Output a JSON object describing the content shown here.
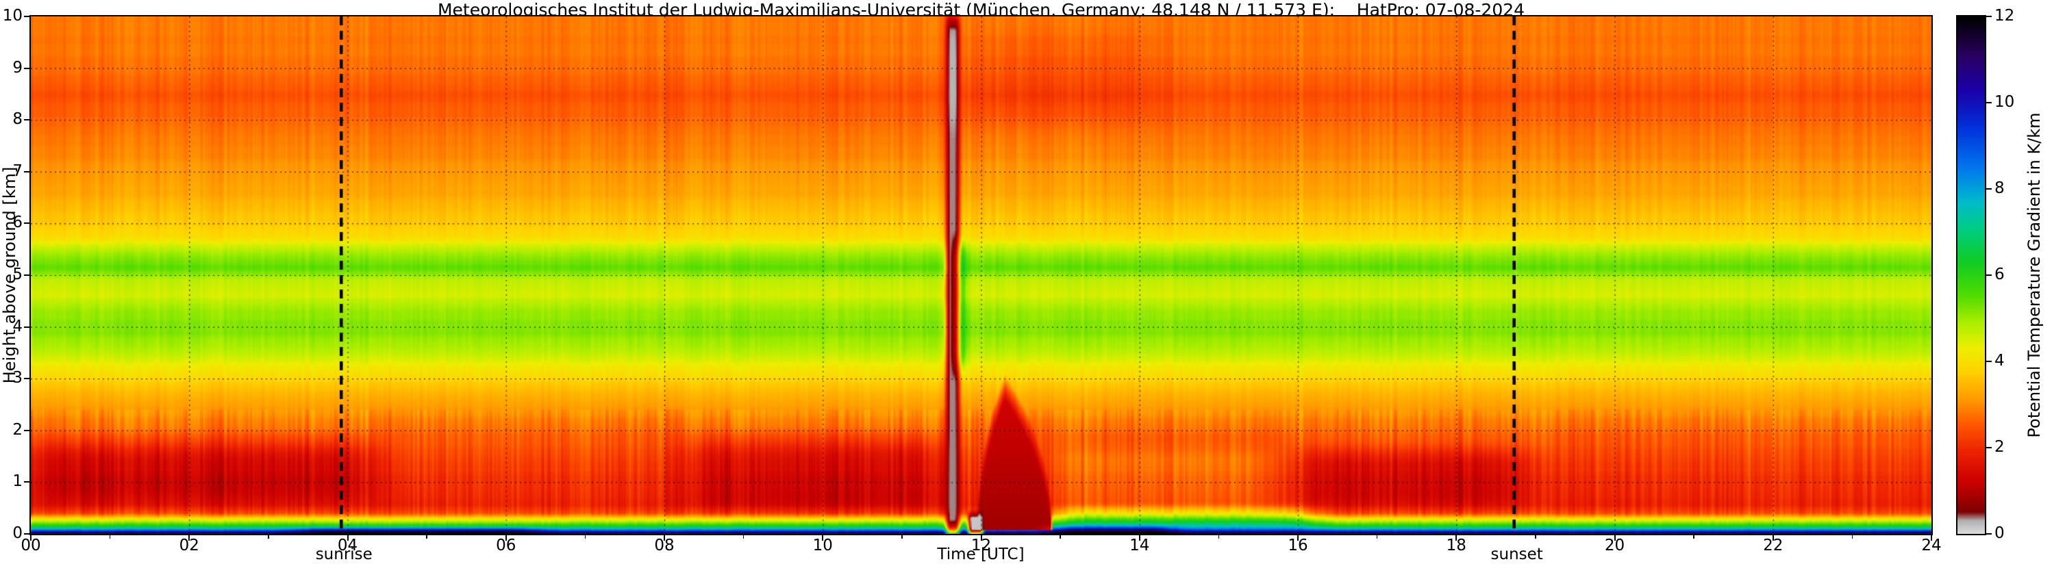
{
  "title": "Meteorologisches Institut der Ludwig-Maximilians-Universität (München, Germany; 48.148 N / 11.573 E):    HatPro: 07-08-2024",
  "axes": {
    "x": {
      "label": "Time [UTC]",
      "range_hours": [
        0,
        24
      ],
      "tick_values": [
        0,
        2,
        4,
        6,
        8,
        10,
        12,
        14,
        16,
        18,
        20,
        22,
        24
      ],
      "tick_labels": [
        "00",
        "02",
        "04",
        "06",
        "08",
        "10",
        "12",
        "14",
        "16",
        "18",
        "20",
        "22",
        "24"
      ],
      "minor_tick_values": [
        1,
        3,
        5,
        7,
        9,
        11,
        13,
        15,
        17,
        19,
        21,
        23
      ]
    },
    "y": {
      "label": "Height above ground [km]",
      "range_km": [
        0,
        10
      ],
      "tick_values": [
        0,
        1,
        2,
        3,
        4,
        5,
        6,
        7,
        8,
        9,
        10
      ],
      "tick_labels": [
        "0",
        "1",
        "2",
        "3",
        "4",
        "5",
        "6",
        "7",
        "8",
        "9",
        "10"
      ]
    }
  },
  "colorbar": {
    "label": "Potential Temperature Gradient in K/km",
    "range": [
      0,
      12
    ],
    "tick_values": [
      0,
      2,
      4,
      6,
      8,
      10,
      12
    ],
    "tick_labels": [
      "0",
      "2",
      "4",
      "6",
      "8",
      "10",
      "12"
    ]
  },
  "events": {
    "sunrise": {
      "label": "sunrise",
      "time_utc": 3.92
    },
    "sunset": {
      "label": "sunset",
      "time_utc": 18.73
    }
  },
  "grid": {
    "style": "dotted",
    "color": "#000000",
    "x_lines_hours": [
      2,
      4,
      6,
      8,
      10,
      12,
      14,
      16,
      18,
      20,
      22
    ],
    "y_lines_km": [
      1,
      2,
      3,
      4,
      5,
      6,
      7,
      8,
      9
    ]
  },
  "chart_data": {
    "type": "heatmap",
    "x_units": "hours UTC",
    "y_units": "km above ground",
    "value_units": "K/km",
    "x_range": [
      0,
      24
    ],
    "y_range": [
      0,
      10
    ],
    "value_range": [
      0,
      12
    ],
    "colormap_stops": [
      [
        0.0,
        "#dcdcdc"
      ],
      [
        0.3,
        "#b0b0b0"
      ],
      [
        0.5,
        "#7f0000"
      ],
      [
        1.2,
        "#cc0000"
      ],
      [
        1.9,
        "#ee2200"
      ],
      [
        2.5,
        "#ff5500"
      ],
      [
        3.1,
        "#ff9900"
      ],
      [
        3.8,
        "#ffd500"
      ],
      [
        4.3,
        "#eeee00"
      ],
      [
        4.9,
        "#aaee00"
      ],
      [
        5.5,
        "#55dd00"
      ],
      [
        6.3,
        "#11cc22"
      ],
      [
        7.1,
        "#00cc88"
      ],
      [
        7.7,
        "#00bbcc"
      ],
      [
        8.5,
        "#0077ee"
      ],
      [
        9.4,
        "#0033dd"
      ],
      [
        10.3,
        "#1b00aa"
      ],
      [
        11.1,
        "#2a0060"
      ],
      [
        12.0,
        "#000000"
      ]
    ],
    "base_profile": {
      "heights_km": [
        0.0,
        0.03,
        0.06,
        0.1,
        0.15,
        0.22,
        0.3,
        0.4,
        0.55,
        0.8,
        1.1,
        1.5,
        1.9,
        2.3,
        2.7,
        3.1,
        3.5,
        3.9,
        4.3,
        4.6,
        4.9,
        5.15,
        5.45,
        5.75,
        6.1,
        6.6,
        7.1,
        7.6,
        8.1,
        8.5,
        8.9,
        9.3,
        9.7,
        10.0
      ],
      "gradient_K_per_km": [
        11.8,
        10.6,
        9.2,
        7.6,
        6.3,
        5.1,
        3.9,
        2.4,
        1.9,
        1.95,
        2.1,
        2.3,
        2.6,
        3.0,
        3.4,
        4.0,
        4.7,
        5.2,
        5.0,
        4.5,
        4.7,
        5.5,
        4.9,
        3.9,
        3.6,
        3.3,
        3.05,
        2.85,
        2.6,
        2.45,
        2.65,
        2.8,
        2.8,
        2.85
      ]
    },
    "anomalies": [
      {
        "name": "night-low-level-red",
        "t0": 0.0,
        "t1": 4.3,
        "h0": 0.6,
        "h1": 1.75,
        "dv": -0.9,
        "ft": 0.5,
        "fh": 0.35
      },
      {
        "name": "morning-low-level-red",
        "t0": 8.3,
        "t1": 11.55,
        "h0": 0.45,
        "h1": 1.8,
        "dv": -0.8,
        "ft": 0.5,
        "fh": 0.35
      },
      {
        "name": "evening-low-level-red",
        "t0": 15.9,
        "t1": 18.9,
        "h0": 0.55,
        "h1": 1.6,
        "dv": -0.75,
        "ft": 0.6,
        "fh": 0.3
      },
      {
        "name": "afternoon-mixed-layer",
        "t0": 12.95,
        "t1": 15.9,
        "h0": 0.25,
        "h1": 1.6,
        "dv": 0.55,
        "ft": 0.5,
        "fh": 0.25
      },
      {
        "name": "afternoon-surface-green",
        "t0": 13.0,
        "t1": 16.2,
        "h0": 0.08,
        "h1": 0.5,
        "dv": 1.2,
        "ft": 0.4,
        "fh": 0.15
      },
      {
        "name": "midday-plume",
        "type": "plume",
        "t0": 11.95,
        "t1": 12.9,
        "t_peak": 12.3,
        "h_top": 3.1,
        "value": 0.8
      },
      {
        "name": "pale-streak",
        "type": "set",
        "t0": 11.56,
        "t1": 11.72,
        "h0": 0.0,
        "h1": 10.0,
        "value": 0.35,
        "ft": 0.05,
        "fh": 0.3
      },
      {
        "name": "surface-white-notch",
        "type": "set",
        "t0": 11.84,
        "t1": 12.02,
        "h0": 0.0,
        "h1": 0.4,
        "value": 0.15,
        "ft": 0.04,
        "fh": 0.1
      },
      {
        "name": "midday-green-streak",
        "t0": 11.66,
        "t1": 11.8,
        "h0": 3.2,
        "h1": 5.6,
        "dv": 1.1,
        "ft": 0.06,
        "fh": 0.3
      },
      {
        "name": "early-morning-dark-surface",
        "t0": 3.4,
        "t1": 6.4,
        "h0": 0.0,
        "h1": 0.12,
        "dv": 1.5,
        "ft": 0.4,
        "fh": 0.06
      },
      {
        "name": "afternoon-dark-surface",
        "t0": 12.9,
        "t1": 14.4,
        "h0": 0.0,
        "h1": 0.14,
        "dv": 1.8,
        "ft": 0.3,
        "fh": 0.08
      },
      {
        "name": "upper-level-orange-patch",
        "t0": 11.8,
        "t1": 14.2,
        "h0": 8.0,
        "h1": 9.6,
        "dv": -0.25,
        "ft": 0.8,
        "fh": 0.5
      }
    ],
    "noise": {
      "seed": 7,
      "column_amp_surface": 0.28,
      "column_amp_boundary_layer": 0.55,
      "column_amp_mid": 0.2,
      "column_amp_upper": 0.28,
      "row_amp": 0.09
    }
  }
}
